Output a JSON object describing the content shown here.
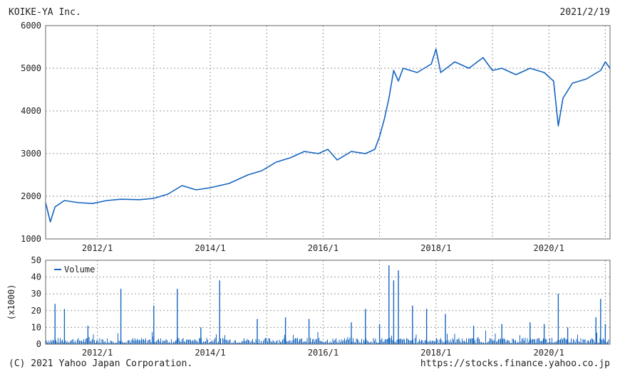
{
  "header": {
    "company": "KOIKE-YA Inc.",
    "date": "2021/2/19"
  },
  "footer": {
    "copyright": "(C) 2021 Yahoo Japan Corporation.",
    "url": "https://stocks.finance.yahoo.co.jp"
  },
  "colors": {
    "series": "#1565c0",
    "grid": "#9a9a9a",
    "frame": "#666666"
  },
  "chart_data": [
    {
      "type": "line",
      "title": "",
      "x_axis": "date",
      "x_ticks": [
        "2012/1",
        "2014/1",
        "2016/1",
        "2018/1",
        "2020/1"
      ],
      "xlim": [
        "2011/2",
        "2021/2"
      ],
      "ylim": [
        1000,
        6000
      ],
      "y_ticks": [
        1000,
        2000,
        3000,
        4000,
        5000,
        6000
      ],
      "grid": true,
      "series": [
        {
          "values": [
            [
              "2011/2",
              1850
            ],
            [
              "2011/3",
              1400
            ],
            [
              "2011/4",
              1750
            ],
            [
              "2011/6",
              1900
            ],
            [
              "2011/9",
              1850
            ],
            [
              "2011/12",
              1830
            ],
            [
              "2012/3",
              1900
            ],
            [
              "2012/6",
              1930
            ],
            [
              "2012/10",
              1920
            ],
            [
              "2013/1",
              1950
            ],
            [
              "2013/4",
              2050
            ],
            [
              "2013/7",
              2250
            ],
            [
              "2013/10",
              2150
            ],
            [
              "2014/1",
              2200
            ],
            [
              "2014/5",
              2300
            ],
            [
              "2014/9",
              2500
            ],
            [
              "2014/12",
              2600
            ],
            [
              "2015/3",
              2800
            ],
            [
              "2015/6",
              2900
            ],
            [
              "2015/9",
              3050
            ],
            [
              "2015/12",
              3000
            ],
            [
              "2016/2",
              3100
            ],
            [
              "2016/4",
              2850
            ],
            [
              "2016/7",
              3050
            ],
            [
              "2016/10",
              3000
            ],
            [
              "2016/12",
              3100
            ],
            [
              "2017/1",
              3400
            ],
            [
              "2017/2",
              3800
            ],
            [
              "2017/3",
              4300
            ],
            [
              "2017/4",
              4950
            ],
            [
              "2017/5",
              4700
            ],
            [
              "2017/6",
              5000
            ],
            [
              "2017/9",
              4900
            ],
            [
              "2017/12",
              5100
            ],
            [
              "2018/1",
              5450
            ],
            [
              "2018/2",
              4900
            ],
            [
              "2018/5",
              5150
            ],
            [
              "2018/8",
              5000
            ],
            [
              "2018/11",
              5250
            ],
            [
              "2019/1",
              4950
            ],
            [
              "2019/3",
              5000
            ],
            [
              "2019/6",
              4850
            ],
            [
              "2019/9",
              5000
            ],
            [
              "2019/12",
              4900
            ],
            [
              "2020/2",
              4700
            ],
            [
              "2020/3",
              3650
            ],
            [
              "2020/4",
              4300
            ],
            [
              "2020/6",
              4650
            ],
            [
              "2020/9",
              4750
            ],
            [
              "2020/12",
              4950
            ],
            [
              "2021/1",
              5150
            ],
            [
              "2021/2",
              5000
            ]
          ]
        }
      ]
    },
    {
      "type": "bar",
      "title": "",
      "ylabel": "(x1000)",
      "x_ticks": [
        "2012/1",
        "2014/1",
        "2016/1",
        "2018/1",
        "2020/1"
      ],
      "ylim": [
        0,
        50
      ],
      "y_ticks": [
        0,
        10,
        20,
        30,
        40,
        50
      ],
      "grid": true,
      "legend": {
        "position": "top-left",
        "entries": [
          "Volume"
        ]
      },
      "series": [
        {
          "name": "Volume",
          "spikes": [
            [
              "2011/4",
              24
            ],
            [
              "2011/6",
              21
            ],
            [
              "2011/11",
              11
            ],
            [
              "2012/6",
              33
            ],
            [
              "2013/1",
              23
            ],
            [
              "2013/6",
              33
            ],
            [
              "2013/11",
              10
            ],
            [
              "2014/3",
              38
            ],
            [
              "2014/11",
              15
            ],
            [
              "2015/5",
              16
            ],
            [
              "2015/10",
              15
            ],
            [
              "2016/7",
              13
            ],
            [
              "2016/10",
              21
            ],
            [
              "2017/1",
              12
            ],
            [
              "2017/3",
              47
            ],
            [
              "2017/4",
              38
            ],
            [
              "2017/5",
              44
            ],
            [
              "2017/8",
              23
            ],
            [
              "2017/11",
              21
            ],
            [
              "2018/3",
              18
            ],
            [
              "2018/9",
              11
            ],
            [
              "2019/3",
              12
            ],
            [
              "2019/9",
              13
            ],
            [
              "2019/12",
              12
            ],
            [
              "2020/3",
              30
            ],
            [
              "2020/5",
              10
            ],
            [
              "2020/11",
              16
            ],
            [
              "2020/12",
              27
            ],
            [
              "2021/1",
              12
            ]
          ],
          "baseline_typical": 2
        }
      ]
    }
  ]
}
